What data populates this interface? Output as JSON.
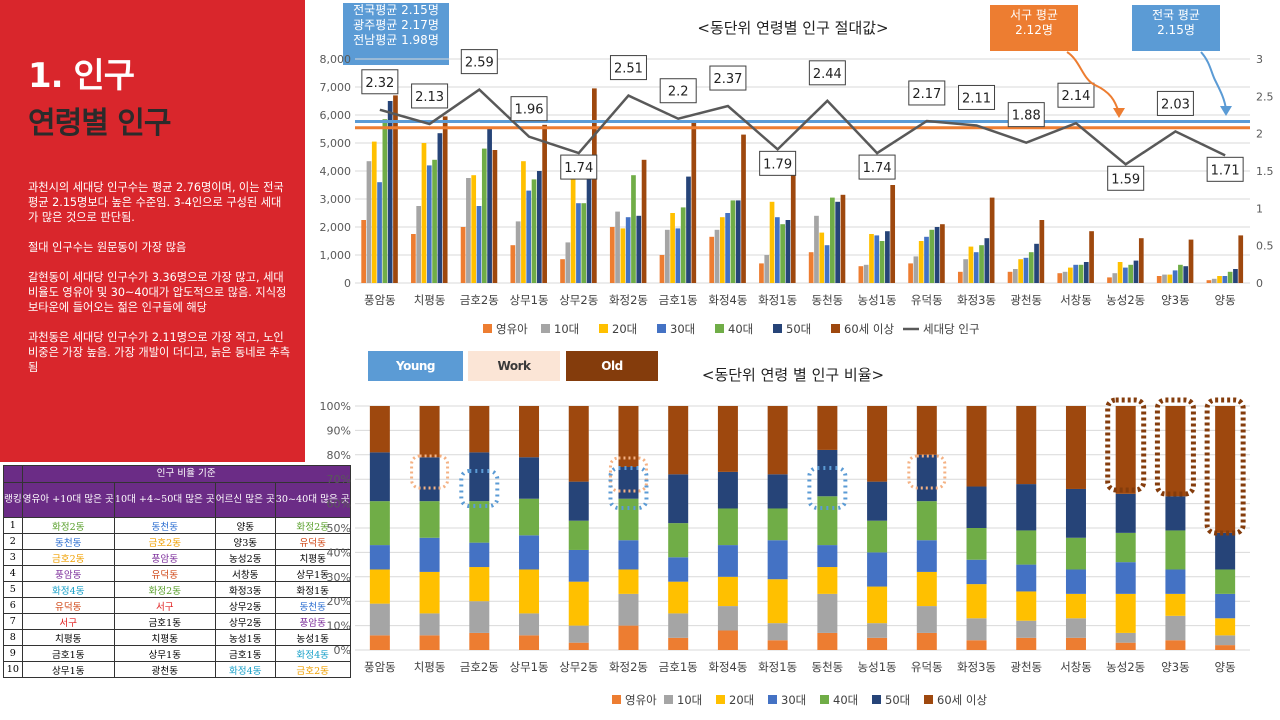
{
  "left_panel": {
    "section_title": "1. 인구",
    "section_subtitle": "연령별 인구",
    "paragraphs": [
      "과천시의 세대당 인구수는 평균 2.76명이며, 이는 전국 평균 2.15명보다 높은 수준임. 3-4인으로 구성된 세대가 많은 것으로 판단됨.",
      "절대 인구수는 원문동이 가장 많음",
      "갈현동이 세대당 인구수가 3.36명으로 가장 많고, 세대비율도 영유아 및 30~40대가 압도적으로 많음. 지식정보타운에 들어오는 젊은 인구들에 해당",
      "과천동은 세대당 인구수가 2.11명으로 가장 적고, 노인 비중은 가장 높음. 가장 개발이 더디고, 늙은 동네로 추측됨"
    ]
  },
  "ranking_table": {
    "group_header": "인구 비율 기준",
    "rank_header": "랭킹",
    "columns": [
      "영유아 +10대 많은 곳",
      "10대 +4~50대 많은 곳",
      "어르신 많은 곳",
      "30~40대 많은 곳"
    ],
    "rows": [
      {
        "rank": "1",
        "cells": [
          {
            "t": "화정2동",
            "c": "#5aa02c"
          },
          {
            "t": "동천동",
            "c": "#2e6fd1"
          },
          {
            "t": "양동",
            "c": "#000000"
          },
          {
            "t": "화정2동",
            "c": "#5aa02c"
          }
        ]
      },
      {
        "rank": "2",
        "cells": [
          {
            "t": "동천동",
            "c": "#2e6fd1"
          },
          {
            "t": "금호2동",
            "c": "#f0a000"
          },
          {
            "t": "양3동",
            "c": "#000000"
          },
          {
            "t": "유덕동",
            "c": "#d04a1a"
          }
        ]
      },
      {
        "rank": "3",
        "cells": [
          {
            "t": "금호2동",
            "c": "#f0a000"
          },
          {
            "t": "풍암동",
            "c": "#7b2c9a"
          },
          {
            "t": "농성2동",
            "c": "#000000"
          },
          {
            "t": "치평동",
            "c": "#000000"
          }
        ]
      },
      {
        "rank": "4",
        "cells": [
          {
            "t": "풍암동",
            "c": "#7b2c9a"
          },
          {
            "t": "유덕동",
            "c": "#d04a1a"
          },
          {
            "t": "서창동",
            "c": "#000000"
          },
          {
            "t": "상무1동",
            "c": "#000000"
          }
        ]
      },
      {
        "rank": "5",
        "cells": [
          {
            "t": "화정4동",
            "c": "#18a0c8"
          },
          {
            "t": "화정2동",
            "c": "#5aa02c"
          },
          {
            "t": "화정3동",
            "c": "#000000"
          },
          {
            "t": "화정1동",
            "c": "#000000"
          }
        ]
      },
      {
        "rank": "6",
        "cells": [
          {
            "t": "유덕동",
            "c": "#d04a1a"
          },
          {
            "t": "서구",
            "c": "#e02020"
          },
          {
            "t": "상무2동",
            "c": "#000000"
          },
          {
            "t": "동천동",
            "c": "#2e6fd1"
          }
        ]
      },
      {
        "rank": "7",
        "cells": [
          {
            "t": "서구",
            "c": "#e02020"
          },
          {
            "t": "금호1동",
            "c": "#000000"
          },
          {
            "t": "상무2동",
            "c": "#000000"
          },
          {
            "t": "풍암동",
            "c": "#7b2c9a"
          }
        ]
      },
      {
        "rank": "8",
        "cells": [
          {
            "t": "치평동",
            "c": "#000000"
          },
          {
            "t": "치평동",
            "c": "#000000"
          },
          {
            "t": "농성1동",
            "c": "#000000"
          },
          {
            "t": "농성1동",
            "c": "#000000"
          }
        ]
      },
      {
        "rank": "9",
        "cells": [
          {
            "t": "금호1동",
            "c": "#000000"
          },
          {
            "t": "상무1동",
            "c": "#000000"
          },
          {
            "t": "금호1동",
            "c": "#000000"
          },
          {
            "t": "화정4동",
            "c": "#18a0c8"
          }
        ]
      },
      {
        "rank": "10",
        "cells": [
          {
            "t": "상무1동",
            "c": "#000000"
          },
          {
            "t": "광천동",
            "c": "#000000"
          },
          {
            "t": "화정4동",
            "c": "#18a0c8"
          },
          {
            "t": "금호2동",
            "c": "#f0a000"
          }
        ]
      }
    ]
  },
  "annotations": {
    "top_left": [
      "전국평균 2.15명",
      "광주평균 2.17명",
      "전남평균 1.98명"
    ],
    "seogu": [
      "서구 평균",
      "2.12명"
    ],
    "national": [
      "전국 평균",
      "2.15명"
    ]
  },
  "category_boxes": {
    "young": {
      "label": "Young",
      "bg": "#5b9bd5",
      "fg": "#ffffff"
    },
    "work": {
      "label": "Work",
      "bg": "#fbe5d6",
      "fg": "#3a3a3a"
    },
    "old": {
      "label": "Old",
      "bg": "#843c0c",
      "fg": "#ffffff"
    }
  },
  "colors": {
    "영유아": "#ed7d31",
    "10대": "#a5a5a5",
    "20대": "#ffc000",
    "30대": "#4472c4",
    "40대": "#70ad47",
    "50대": "#264478",
    "60세 이상": "#9e480e",
    "세대당 인구": "#595959",
    "national_line": "#5b9bd5",
    "seogu_line": "#ed7d31",
    "red_panel": "#d9262c"
  },
  "chart_data": [
    {
      "type": "bar",
      "title": "<동단위 연령별 인구 절대값>",
      "categories": [
        "풍암동",
        "치평동",
        "금호2동",
        "상무1동",
        "상무2동",
        "화정2동",
        "금호1동",
        "화정4동",
        "화정1동",
        "동천동",
        "농성1동",
        "유덕동",
        "화정3동",
        "광천동",
        "서창동",
        "농성2동",
        "양3동",
        "양동"
      ],
      "ylim": [
        0,
        8000
      ],
      "y_ticks": [
        "0",
        "1,000",
        "2,000",
        "3,000",
        "4,000",
        "5,000",
        "6,000",
        "7,000",
        "8,000"
      ],
      "y2lim": [
        0,
        3
      ],
      "y2_ticks": [
        "0",
        "0.5",
        "1",
        "1.5",
        "2",
        "2.5",
        "3"
      ],
      "series": [
        {
          "name": "영유아",
          "values": [
            2250,
            1750,
            2000,
            1350,
            850,
            2000,
            1000,
            1650,
            700,
            1100,
            600,
            700,
            400,
            400,
            350,
            200,
            250,
            100
          ]
        },
        {
          "name": "10대",
          "values": [
            4350,
            2750,
            3750,
            2200,
            1450,
            2550,
            1900,
            1900,
            1000,
            2400,
            650,
            950,
            850,
            500,
            400,
            350,
            300,
            150
          ]
        },
        {
          "name": "20대",
          "values": [
            5050,
            5000,
            3850,
            4350,
            4050,
            1950,
            2500,
            2350,
            2900,
            1800,
            1750,
            1500,
            1300,
            850,
            550,
            750,
            300,
            250
          ]
        },
        {
          "name": "30대",
          "values": [
            3600,
            4200,
            2750,
            3300,
            2850,
            2350,
            1950,
            2500,
            2350,
            1350,
            1700,
            1650,
            1100,
            900,
            650,
            550,
            450,
            250
          ]
        },
        {
          "name": "40대",
          "values": [
            5850,
            4400,
            4800,
            3700,
            2850,
            3850,
            2700,
            2950,
            2100,
            3050,
            1500,
            1900,
            1350,
            1100,
            650,
            650,
            650,
            400
          ]
        },
        {
          "name": "50대",
          "values": [
            6500,
            5350,
            5500,
            4000,
            3700,
            2400,
            3800,
            2950,
            2250,
            2900,
            1850,
            2000,
            1600,
            1400,
            750,
            800,
            600,
            500
          ]
        },
        {
          "name": "60세 이상",
          "values": [
            6700,
            5950,
            4750,
            5650,
            6950,
            4400,
            5750,
            5300,
            4100,
            3150,
            3500,
            2100,
            3050,
            2250,
            1850,
            1600,
            1550,
            1700
          ]
        }
      ],
      "line_series": {
        "name": "세대당 인구",
        "axis": "secondary",
        "values": [
          2.32,
          2.13,
          2.59,
          1.96,
          1.74,
          2.51,
          2.2,
          2.37,
          1.79,
          2.44,
          1.74,
          2.17,
          2.11,
          1.88,
          2.14,
          1.59,
          2.03,
          1.71
        ]
      },
      "reference_lines": [
        {
          "label": "전국 평균",
          "value": 2.15
        },
        {
          "label": "서구 평균",
          "value": 2.12
        }
      ],
      "legend": "bottom"
    },
    {
      "type": "bar",
      "stacked": "percent",
      "title": "<동단위 연령 별 인구 비율>",
      "categories": [
        "풍암동",
        "치평동",
        "금호2동",
        "상무1동",
        "상무2동",
        "화정2동",
        "금호1동",
        "화정4동",
        "화정1동",
        "동천동",
        "농성1동",
        "유덕동",
        "화정3동",
        "광천동",
        "서창동",
        "농성2동",
        "양3동",
        "양동"
      ],
      "ylim": [
        0,
        100
      ],
      "y_ticks": [
        "0%",
        "10%",
        "20%",
        "30%",
        "40%",
        "50%",
        "60%",
        "70%",
        "80%",
        "90%",
        "100%"
      ],
      "series": [
        {
          "name": "영유아",
          "values": [
            6,
            6,
            7,
            6,
            3,
            10,
            5,
            8,
            4,
            7,
            5,
            7,
            4,
            5,
            5,
            3,
            4,
            2
          ]
        },
        {
          "name": "10대",
          "values": [
            13,
            9,
            13,
            9,
            7,
            13,
            10,
            10,
            7,
            16,
            6,
            11,
            9,
            7,
            8,
            4,
            10,
            4
          ]
        },
        {
          "name": "20대",
          "values": [
            14,
            17,
            14,
            18,
            18,
            10,
            13,
            12,
            18,
            11,
            15,
            14,
            14,
            12,
            10,
            16,
            9,
            7
          ]
        },
        {
          "name": "30대",
          "values": [
            10,
            14,
            10,
            14,
            13,
            12,
            10,
            13,
            16,
            9,
            14,
            13,
            10,
            11,
            10,
            13,
            10,
            10
          ]
        },
        {
          "name": "40대",
          "values": [
            18,
            15,
            17,
            15,
            12,
            17,
            14,
            15,
            13,
            20,
            13,
            16,
            13,
            14,
            13,
            12,
            16,
            10
          ]
        },
        {
          "name": "50대",
          "values": [
            20,
            18,
            20,
            17,
            16,
            13,
            20,
            15,
            14,
            19,
            16,
            19,
            17,
            19,
            20,
            16,
            14,
            15
          ]
        },
        {
          "name": "60세 이상",
          "values": [
            19,
            21,
            19,
            21,
            31,
            25,
            28,
            27,
            28,
            18,
            31,
            20,
            33,
            32,
            34,
            36,
            37,
            52
          ]
        }
      ],
      "legend": "bottom"
    }
  ]
}
